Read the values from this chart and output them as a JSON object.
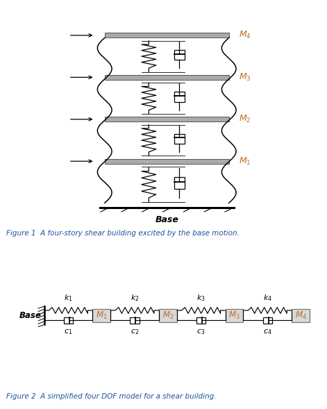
{
  "fig_width": 4.71,
  "fig_height": 5.89,
  "bg_color": "#ffffff",
  "divider_color": "#555555",
  "fig1_caption": "Figure 1  A four-story shear building excited by the base motion.",
  "fig2_caption": "Figure 2  A simplified four DOF model for a shear building.",
  "caption_color": "#1a52a0",
  "caption_fontsize": 7.5,
  "mass_color": "#b87020",
  "k_labels": [
    "k_1",
    "k_2",
    "k_3",
    "k_4"
  ],
  "c_labels": [
    "c_1",
    "c_2",
    "c_3",
    "c_4"
  ],
  "M_labels_fig2": [
    "M_1",
    "M_2",
    "M_3",
    "M_4"
  ],
  "mass_label_color_fig2": "#b87020",
  "floor_color": "#a0a0a0"
}
